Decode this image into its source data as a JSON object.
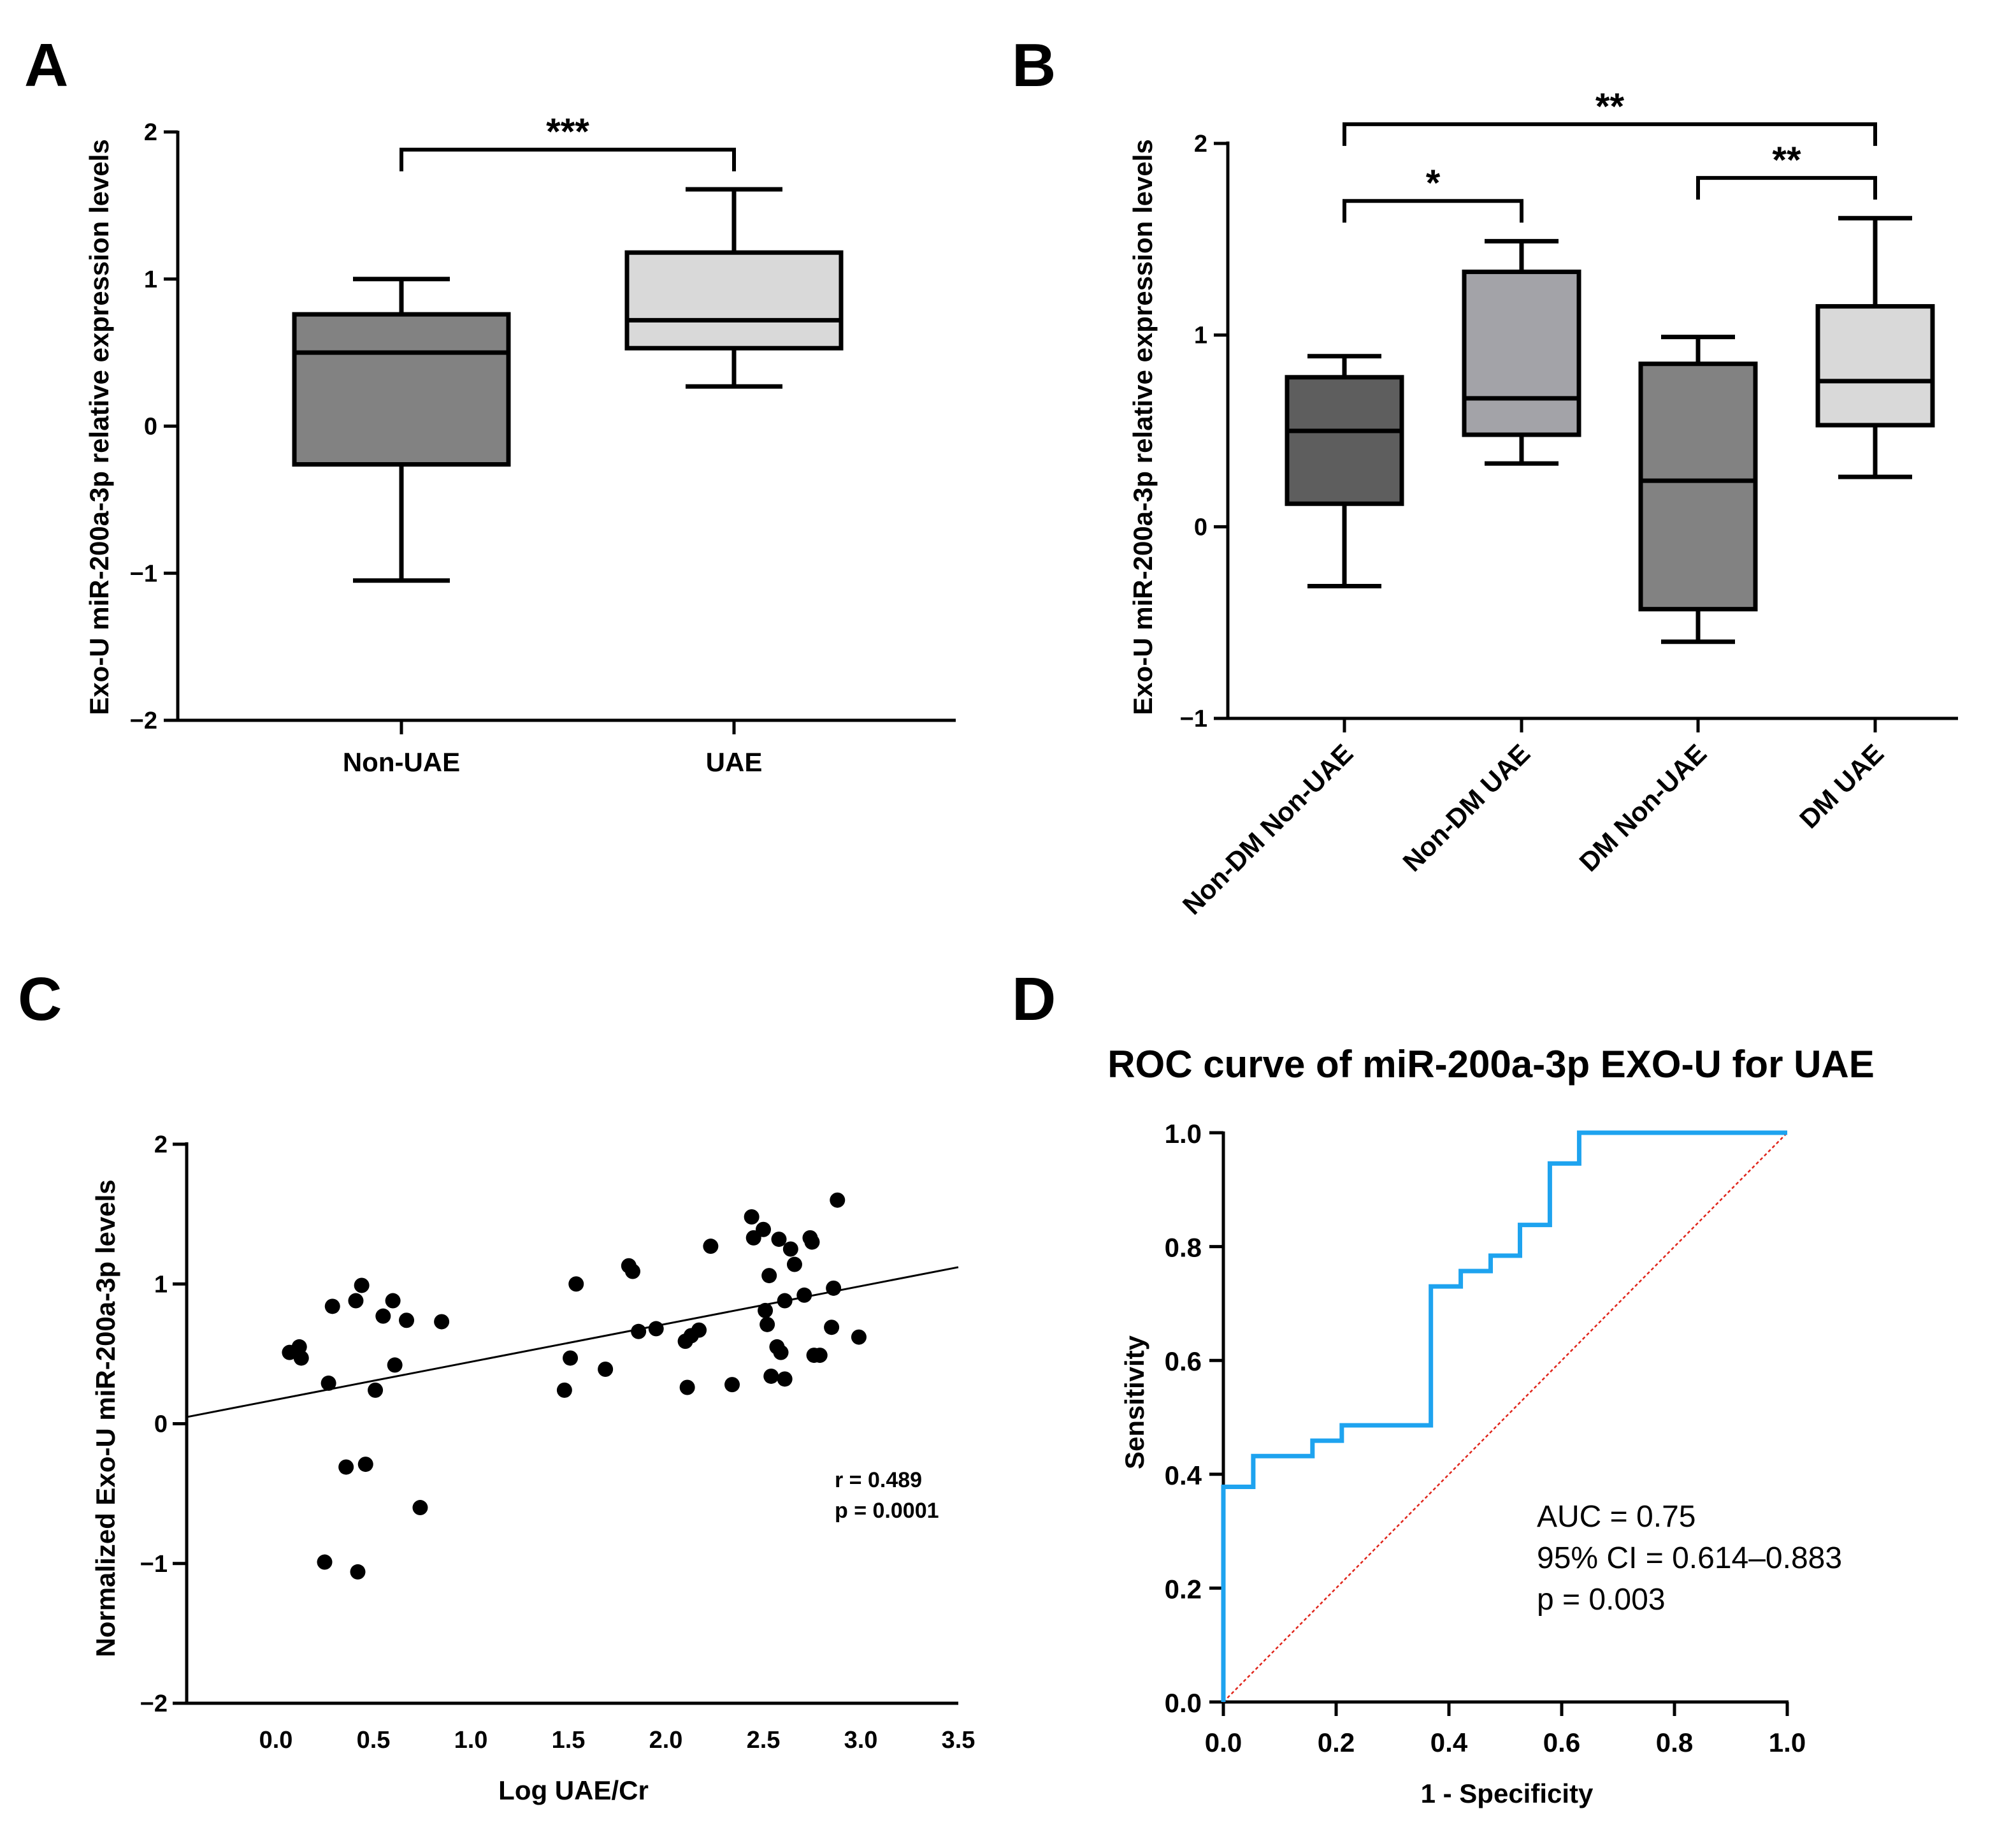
{
  "colors": {
    "dark": "#5e5e5e",
    "mid": "#828282",
    "light": "#a3a3a8",
    "pale": "#d9d9d9",
    "roc": "#1ea3ef",
    "reference": "#e0251b"
  },
  "chart_data": [
    {
      "panel": "A",
      "type": "box",
      "ylabel": "Exo-U miR-200a-3p relative expression levels",
      "xlabel": "",
      "ylim": [
        -2,
        2
      ],
      "yticks": [
        "2",
        "1",
        "0",
        "−1",
        "−2"
      ],
      "categories": [
        "Non-UAE",
        "UAE"
      ],
      "boxes": [
        {
          "name": "Non-UAE",
          "min": -1.05,
          "q1": -0.26,
          "median": 0.5,
          "q3": 0.76,
          "max": 1.0,
          "fill": "#828282"
        },
        {
          "name": "UAE",
          "min": 0.27,
          "q1": 0.53,
          "median": 0.72,
          "q3": 1.18,
          "max": 1.61,
          "fill": "#d9d9d9"
        }
      ],
      "significance": [
        {
          "from": "Non-UAE",
          "to": "UAE",
          "label": "***",
          "y": 1.88
        }
      ]
    },
    {
      "panel": "B",
      "type": "box",
      "ylabel": "Exo-U miR-200a-3p relative expression levels",
      "xlabel": "",
      "ylim": [
        -1,
        2
      ],
      "yticks": [
        "2",
        "1",
        "0",
        "−1"
      ],
      "categories": [
        "Non-DM Non-UAE",
        "Non-DM UAE",
        "DM Non-UAE",
        "DM UAE"
      ],
      "boxes": [
        {
          "name": "Non-DM Non-UAE",
          "min": -0.31,
          "q1": 0.12,
          "median": 0.5,
          "q3": 0.78,
          "max": 0.89,
          "fill": "#5e5e5e"
        },
        {
          "name": "Non-DM UAE",
          "min": 0.33,
          "q1": 0.48,
          "median": 0.67,
          "q3": 1.33,
          "max": 1.49,
          "fill": "#a3a3a8"
        },
        {
          "name": "DM Non-UAE",
          "min": -0.6,
          "q1": -0.43,
          "median": 0.24,
          "q3": 0.85,
          "max": 0.99,
          "fill": "#828282"
        },
        {
          "name": "DM UAE",
          "min": 0.26,
          "q1": 0.53,
          "median": 0.76,
          "q3": 1.15,
          "max": 1.61,
          "fill": "#d9d9d9"
        }
      ],
      "significance": [
        {
          "from": "Non-DM Non-UAE",
          "to": "Non-DM UAE",
          "label": "*",
          "y": 1.7
        },
        {
          "from": "DM Non-UAE",
          "to": "DM UAE",
          "label": "**",
          "y": 1.82
        },
        {
          "from": "Non-DM Non-UAE",
          "to": "DM UAE",
          "label": "**",
          "y": 2.1
        }
      ]
    },
    {
      "panel": "C",
      "type": "scatter",
      "xlabel": "Log UAE/Cr",
      "ylabel": "Normalized Exo-U miR-200a-3p levels",
      "xlim": [
        -0.45,
        3.5
      ],
      "ylim": [
        -2,
        2
      ],
      "xticks": [
        "0.0",
        "0.5",
        "1.0",
        "1.5",
        "2.0",
        "2.5",
        "3.0",
        "3.5"
      ],
      "yticks": [
        "2",
        "1",
        "0",
        "−1",
        "−2"
      ],
      "points": [
        [
          0.07,
          0.51
        ],
        [
          0.12,
          0.55
        ],
        [
          0.13,
          0.47
        ],
        [
          0.27,
          0.29
        ],
        [
          0.29,
          0.84
        ],
        [
          0.36,
          -0.31
        ],
        [
          0.41,
          0.88
        ],
        [
          0.44,
          0.99
        ],
        [
          0.46,
          -0.29
        ],
        [
          0.25,
          -0.99
        ],
        [
          0.42,
          -1.06
        ],
        [
          0.51,
          0.24
        ],
        [
          0.55,
          0.77
        ],
        [
          0.6,
          0.88
        ],
        [
          0.61,
          0.42
        ],
        [
          0.67,
          0.74
        ],
        [
          0.74,
          -0.6
        ],
        [
          0.85,
          0.73
        ],
        [
          1.48,
          0.24
        ],
        [
          1.51,
          0.47
        ],
        [
          1.54,
          1.0
        ],
        [
          1.69,
          0.39
        ],
        [
          1.81,
          1.13
        ],
        [
          1.83,
          1.09
        ],
        [
          1.86,
          0.66
        ],
        [
          1.95,
          0.68
        ],
        [
          2.1,
          0.59
        ],
        [
          2.11,
          0.26
        ],
        [
          2.13,
          0.63
        ],
        [
          2.17,
          0.67
        ],
        [
          2.23,
          1.27
        ],
        [
          2.34,
          0.28
        ],
        [
          2.44,
          1.48
        ],
        [
          2.45,
          1.33
        ],
        [
          2.5,
          1.39
        ],
        [
          2.51,
          0.81
        ],
        [
          2.52,
          0.71
        ],
        [
          2.53,
          1.06
        ],
        [
          2.54,
          0.34
        ],
        [
          2.57,
          0.55
        ],
        [
          2.58,
          1.32
        ],
        [
          2.59,
          0.51
        ],
        [
          2.61,
          0.32
        ],
        [
          2.61,
          0.88
        ],
        [
          2.64,
          1.25
        ],
        [
          2.66,
          1.14
        ],
        [
          2.71,
          0.92
        ],
        [
          2.74,
          1.33
        ],
        [
          2.75,
          1.3
        ],
        [
          2.76,
          0.49
        ],
        [
          2.79,
          0.49
        ],
        [
          2.85,
          0.69
        ],
        [
          2.86,
          0.97
        ],
        [
          2.88,
          1.6
        ],
        [
          2.99,
          0.62
        ]
      ],
      "regression": {
        "x": [
          -0.45,
          3.5
        ],
        "y": [
          0.05,
          1.12
        ]
      },
      "stats": {
        "r": "r = 0.489",
        "p": "p = 0.0001"
      }
    },
    {
      "panel": "D",
      "type": "line",
      "title": "ROC curve of miR-200a-3p EXO-U for UAE",
      "xlabel": "1 - Specificity",
      "ylabel": "Sensitivity",
      "xlim": [
        0,
        1
      ],
      "ylim": [
        0,
        1
      ],
      "xticks": [
        "0.0",
        "0.2",
        "0.4",
        "0.6",
        "0.8",
        "1.0"
      ],
      "yticks": [
        "1.0",
        "0.8",
        "0.6",
        "0.4",
        "0.2",
        "0.0"
      ],
      "roc": [
        [
          0,
          0
        ],
        [
          0,
          0.378
        ],
        [
          0.053,
          0.378
        ],
        [
          0.053,
          0.432
        ],
        [
          0.158,
          0.432
        ],
        [
          0.158,
          0.459
        ],
        [
          0.21,
          0.459
        ],
        [
          0.21,
          0.486
        ],
        [
          0.368,
          0.486
        ],
        [
          0.368,
          0.73
        ],
        [
          0.421,
          0.73
        ],
        [
          0.421,
          0.757
        ],
        [
          0.474,
          0.757
        ],
        [
          0.474,
          0.784
        ],
        [
          0.526,
          0.784
        ],
        [
          0.526,
          0.838
        ],
        [
          0.579,
          0.838
        ],
        [
          0.579,
          0.946
        ],
        [
          0.631,
          0.946
        ],
        [
          0.631,
          1.0
        ],
        [
          1.0,
          1.0
        ]
      ],
      "reference": [
        [
          0,
          0
        ],
        [
          1,
          1
        ]
      ],
      "annotation": [
        "AUC = 0.75",
        "95% CI = 0.614–0.883",
        "p = 0.003"
      ]
    }
  ]
}
